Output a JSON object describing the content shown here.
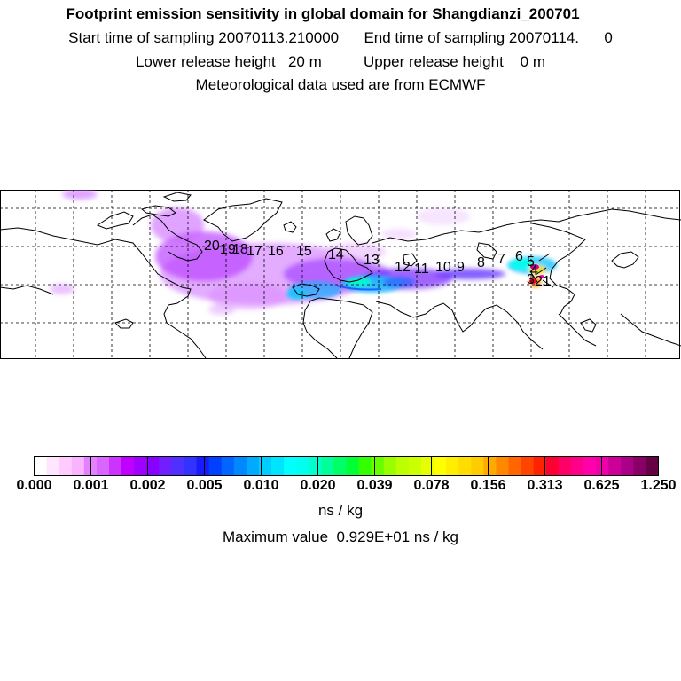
{
  "header": {
    "title": "Footprint emission sensitivity in global domain for Shangdianzi_200701",
    "line2": "Start time of sampling 20070113.210000      End time of sampling 20070114.      0",
    "line3": "Lower release height   20 m          Upper release height    0 m",
    "line4": "Meteorological data used are from ECMWF"
  },
  "trajectory_labels": [
    "1",
    "2",
    "3",
    "4",
    "5",
    "6",
    "7",
    "8",
    "9",
    "10",
    "11",
    "12",
    "13",
    "14",
    "15",
    "16",
    "17",
    "18",
    "19",
    "20"
  ],
  "colorbar": {
    "ticks": [
      "0.000",
      "0.001",
      "0.002",
      "0.005",
      "0.010",
      "0.020",
      "0.039",
      "0.078",
      "0.156",
      "0.313",
      "0.625",
      "1.250"
    ],
    "colors": [
      "#ffffff",
      "#ffe6ff",
      "#ffccff",
      "#f9b3ff",
      "#e580ff",
      "#d966ff",
      "#cc33ff",
      "#bf00ff",
      "#a000ff",
      "#8800ff",
      "#7020ff",
      "#5030ff",
      "#3333ff",
      "#1a1aff",
      "#0040ff",
      "#0066ff",
      "#0088ff",
      "#00aaff",
      "#00ccff",
      "#00e5ff",
      "#00ffff",
      "#00ffee",
      "#00ffcc",
      "#00ff99",
      "#00ff66",
      "#00ff33",
      "#33ff00",
      "#66ff00",
      "#99ff00",
      "#bbff00",
      "#ccff00",
      "#e5ff00",
      "#ffff00",
      "#ffee00",
      "#ffdd00",
      "#ffcc00",
      "#ffaa00",
      "#ff8800",
      "#ff6600",
      "#ff4400",
      "#ff2200",
      "#ff0033",
      "#ff0066",
      "#ff0088",
      "#ff00aa",
      "#ee00aa",
      "#cc0099",
      "#aa0088",
      "#880066",
      "#660044"
    ],
    "unit": "ns / kg",
    "max_label": "Maximum value  0.929E+01 ns / kg"
  }
}
